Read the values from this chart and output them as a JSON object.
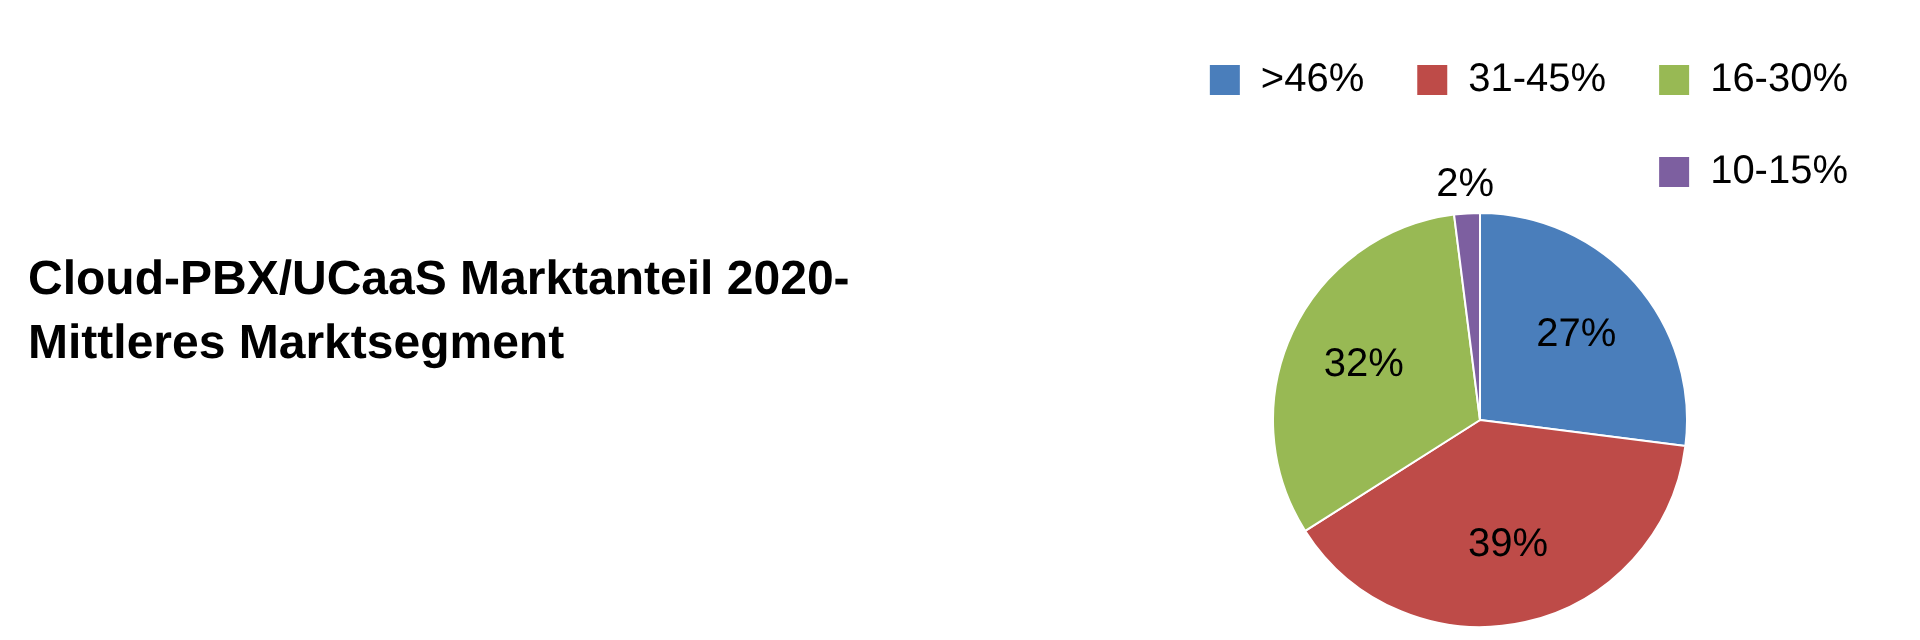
{
  "chart_data": {
    "type": "pie",
    "title": "Cloud-PBX/UCaaS Marktanteil 2020-\nMittleres Marktsegment",
    "categories": [
      ">46%",
      "31-45%",
      "16-30%",
      "10-15%"
    ],
    "values": [
      27,
      39,
      32,
      2
    ],
    "value_labels": [
      "27%",
      "39%",
      "32%",
      "2%"
    ],
    "colors": [
      "#4a7ebb",
      "#be4b48",
      "#98b954",
      "#7d5fa0"
    ],
    "legend": "top right"
  }
}
